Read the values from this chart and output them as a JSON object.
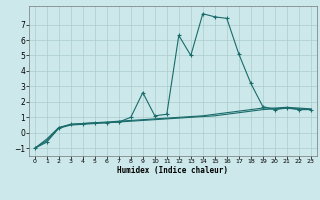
{
  "xlabel": "Humidex (Indice chaleur)",
  "background_color": "#cce8ea",
  "grid_color": "#aacccc",
  "line_color": "#1a6b6b",
  "xlim": [
    -0.5,
    23.5
  ],
  "ylim": [
    -1.5,
    8.2
  ],
  "xticks": [
    0,
    1,
    2,
    3,
    4,
    5,
    6,
    7,
    8,
    9,
    10,
    11,
    12,
    13,
    14,
    15,
    16,
    17,
    18,
    19,
    20,
    21,
    22,
    23
  ],
  "yticks": [
    -1,
    0,
    1,
    2,
    3,
    4,
    5,
    6,
    7
  ],
  "series_main": [
    [
      0,
      -1.0
    ],
    [
      1,
      -0.6
    ],
    [
      2,
      0.3
    ],
    [
      3,
      0.55
    ],
    [
      4,
      0.6
    ],
    [
      5,
      0.65
    ],
    [
      6,
      0.65
    ],
    [
      7,
      0.7
    ],
    [
      8,
      1.0
    ],
    [
      9,
      2.6
    ],
    [
      10,
      1.1
    ],
    [
      11,
      1.2
    ],
    [
      12,
      6.3
    ],
    [
      13,
      5.0
    ],
    [
      14,
      7.7
    ],
    [
      15,
      7.5
    ],
    [
      16,
      7.4
    ],
    [
      17,
      5.1
    ],
    [
      18,
      3.2
    ],
    [
      19,
      1.7
    ],
    [
      20,
      1.5
    ],
    [
      21,
      1.6
    ],
    [
      22,
      1.5
    ],
    [
      23,
      1.5
    ]
  ],
  "series_flat1": [
    [
      0,
      -1.0
    ],
    [
      1,
      -0.5
    ],
    [
      2,
      0.3
    ],
    [
      3,
      0.5
    ],
    [
      4,
      0.55
    ],
    [
      5,
      0.6
    ],
    [
      6,
      0.65
    ],
    [
      7,
      0.7
    ],
    [
      8,
      0.75
    ],
    [
      9,
      0.8
    ],
    [
      10,
      0.85
    ],
    [
      11,
      0.9
    ],
    [
      12,
      0.95
    ],
    [
      13,
      1.0
    ],
    [
      14,
      1.05
    ],
    [
      15,
      1.1
    ],
    [
      16,
      1.2
    ],
    [
      17,
      1.3
    ],
    [
      18,
      1.4
    ],
    [
      19,
      1.5
    ],
    [
      20,
      1.55
    ],
    [
      21,
      1.6
    ],
    [
      22,
      1.55
    ],
    [
      23,
      1.5
    ]
  ],
  "series_flat2": [
    [
      0,
      -1.0
    ],
    [
      1,
      -0.4
    ],
    [
      2,
      0.35
    ],
    [
      3,
      0.55
    ],
    [
      4,
      0.6
    ],
    [
      5,
      0.65
    ],
    [
      6,
      0.7
    ],
    [
      7,
      0.75
    ],
    [
      8,
      0.8
    ],
    [
      9,
      0.85
    ],
    [
      10,
      0.9
    ],
    [
      11,
      0.95
    ],
    [
      12,
      1.0
    ],
    [
      13,
      1.05
    ],
    [
      14,
      1.1
    ],
    [
      15,
      1.2
    ],
    [
      16,
      1.3
    ],
    [
      17,
      1.4
    ],
    [
      18,
      1.5
    ],
    [
      19,
      1.6
    ],
    [
      20,
      1.6
    ],
    [
      21,
      1.65
    ],
    [
      22,
      1.6
    ],
    [
      23,
      1.55
    ]
  ]
}
